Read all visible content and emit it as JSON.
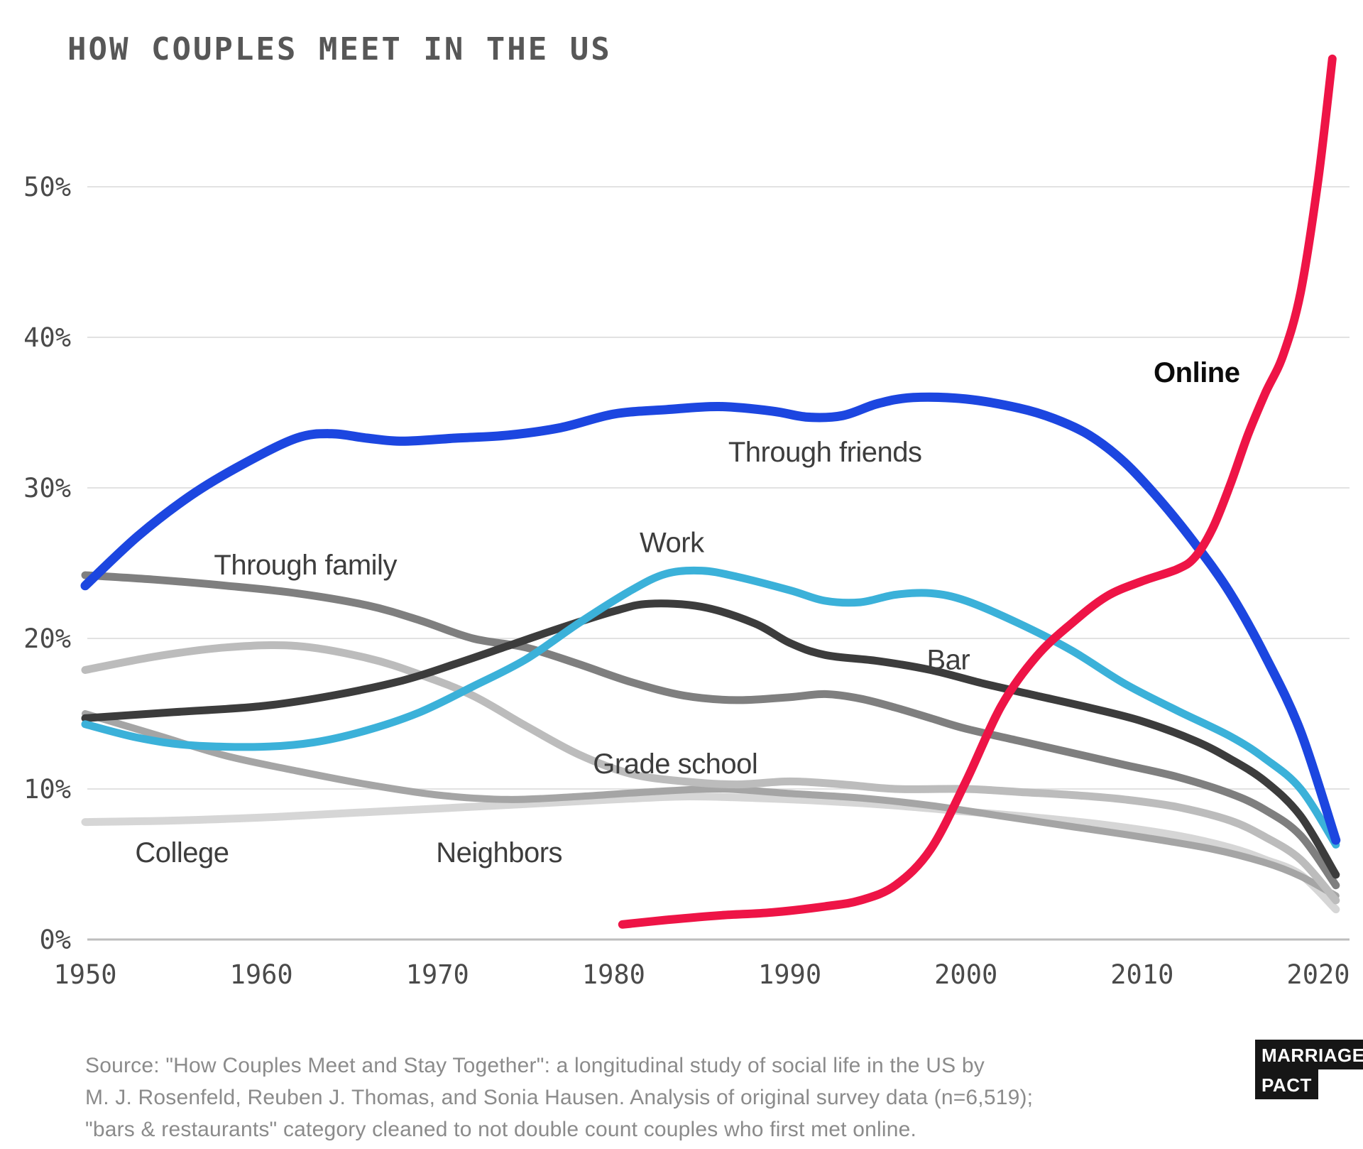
{
  "page": {
    "title": "HOW COUPLES MEET IN THE US"
  },
  "chart_data": {
    "type": "line",
    "title": "HOW COUPLES MEET IN THE US",
    "xlabel": "",
    "ylabel": "",
    "grid": "horizontal",
    "legend_position": "inline-labels",
    "x_axis": {
      "min": 1950,
      "max": 2021,
      "ticks": [
        1950,
        1960,
        1970,
        1980,
        1990,
        2000,
        2010,
        2020
      ]
    },
    "y_axis": {
      "min": 0,
      "max": 59,
      "ticks": [
        {
          "value": 0,
          "label": "0%"
        },
        {
          "value": 10,
          "label": "10%"
        },
        {
          "value": 20,
          "label": "20%"
        },
        {
          "value": 30,
          "label": "30%"
        },
        {
          "value": 40,
          "label": "40%"
        },
        {
          "value": 50,
          "label": "50%"
        }
      ]
    },
    "series": [
      {
        "id": "college",
        "name": "College",
        "color": "#d6d6d6",
        "width": 11,
        "points": [
          [
            1950,
            7.8
          ],
          [
            1955,
            7.9
          ],
          [
            1960,
            8.1
          ],
          [
            1965,
            8.4
          ],
          [
            1970,
            8.7
          ],
          [
            1975,
            9.0
          ],
          [
            1980,
            9.3
          ],
          [
            1984,
            9.5
          ],
          [
            1988,
            9.4
          ],
          [
            1992,
            9.2
          ],
          [
            1996,
            8.9
          ],
          [
            2000,
            8.5
          ],
          [
            2004,
            8.1
          ],
          [
            2008,
            7.6
          ],
          [
            2012,
            6.9
          ],
          [
            2015,
            6.1
          ],
          [
            2017,
            5.3
          ],
          [
            2019,
            4.3
          ],
          [
            2021,
            2.0
          ]
        ]
      },
      {
        "id": "neighbors",
        "name": "Neighbors",
        "color": "#a5a5a5",
        "width": 10,
        "points": [
          [
            1950,
            15.0
          ],
          [
            1954,
            13.6
          ],
          [
            1958,
            12.2
          ],
          [
            1962,
            11.2
          ],
          [
            1966,
            10.3
          ],
          [
            1970,
            9.6
          ],
          [
            1974,
            9.3
          ],
          [
            1978,
            9.5
          ],
          [
            1982,
            9.8
          ],
          [
            1986,
            10.0
          ],
          [
            1990,
            9.7
          ],
          [
            1994,
            9.4
          ],
          [
            1998,
            8.9
          ],
          [
            2002,
            8.2
          ],
          [
            2006,
            7.5
          ],
          [
            2010,
            6.8
          ],
          [
            2014,
            6.0
          ],
          [
            2017,
            5.1
          ],
          [
            2019,
            4.2
          ],
          [
            2021,
            2.9
          ]
        ]
      },
      {
        "id": "grade-school",
        "name": "Grade school",
        "color": "#bcbcbc",
        "width": 11,
        "points": [
          [
            1950,
            17.9
          ],
          [
            1954,
            18.8
          ],
          [
            1958,
            19.4
          ],
          [
            1962,
            19.5
          ],
          [
            1966,
            18.7
          ],
          [
            1969,
            17.6
          ],
          [
            1972,
            16.2
          ],
          [
            1975,
            14.2
          ],
          [
            1978,
            12.3
          ],
          [
            1981,
            11.0
          ],
          [
            1984,
            10.5
          ],
          [
            1987,
            10.3
          ],
          [
            1990,
            10.5
          ],
          [
            1993,
            10.3
          ],
          [
            1996,
            10.0
          ],
          [
            2000,
            10.0
          ],
          [
            2003,
            9.8
          ],
          [
            2006,
            9.6
          ],
          [
            2009,
            9.3
          ],
          [
            2012,
            8.8
          ],
          [
            2015,
            7.9
          ],
          [
            2017,
            6.8
          ],
          [
            2019,
            5.3
          ],
          [
            2021,
            2.6
          ]
        ]
      },
      {
        "id": "through-family",
        "name": "Through family",
        "color": "#7f7f7f",
        "width": 11,
        "points": [
          [
            1950,
            24.2
          ],
          [
            1954,
            23.9
          ],
          [
            1958,
            23.5
          ],
          [
            1962,
            23.0
          ],
          [
            1966,
            22.2
          ],
          [
            1969,
            21.2
          ],
          [
            1972,
            20.0
          ],
          [
            1975,
            19.4
          ],
          [
            1978,
            18.3
          ],
          [
            1981,
            17.1
          ],
          [
            1984,
            16.2
          ],
          [
            1987,
            15.9
          ],
          [
            1990,
            16.1
          ],
          [
            1992,
            16.3
          ],
          [
            1994,
            16.0
          ],
          [
            1996,
            15.4
          ],
          [
            1998,
            14.7
          ],
          [
            2000,
            14.0
          ],
          [
            2003,
            13.2
          ],
          [
            2006,
            12.4
          ],
          [
            2009,
            11.6
          ],
          [
            2012,
            10.8
          ],
          [
            2015,
            9.7
          ],
          [
            2017,
            8.6
          ],
          [
            2019,
            6.9
          ],
          [
            2021,
            3.6
          ]
        ]
      },
      {
        "id": "bar",
        "name": "Bar",
        "color": "#3c3c3c",
        "width": 11,
        "points": [
          [
            1950,
            14.7
          ],
          [
            1955,
            15.1
          ],
          [
            1960,
            15.5
          ],
          [
            1964,
            16.2
          ],
          [
            1968,
            17.2
          ],
          [
            1971,
            18.3
          ],
          [
            1974,
            19.5
          ],
          [
            1977,
            20.7
          ],
          [
            1980,
            21.8
          ],
          [
            1982,
            22.3
          ],
          [
            1985,
            22.1
          ],
          [
            1988,
            21.0
          ],
          [
            1990,
            19.7
          ],
          [
            1992,
            18.9
          ],
          [
            1995,
            18.5
          ],
          [
            1998,
            17.9
          ],
          [
            2001,
            17.0
          ],
          [
            2004,
            16.2
          ],
          [
            2007,
            15.4
          ],
          [
            2010,
            14.5
          ],
          [
            2013,
            13.2
          ],
          [
            2015,
            12.0
          ],
          [
            2017,
            10.5
          ],
          [
            2019,
            8.2
          ],
          [
            2021,
            4.3
          ]
        ]
      },
      {
        "id": "work",
        "name": "Work",
        "color": "#3bb1d9",
        "width": 11,
        "points": [
          [
            1950,
            14.3
          ],
          [
            1953,
            13.4
          ],
          [
            1956,
            12.9
          ],
          [
            1960,
            12.8
          ],
          [
            1963,
            13.1
          ],
          [
            1966,
            13.9
          ],
          [
            1969,
            15.1
          ],
          [
            1972,
            16.8
          ],
          [
            1975,
            18.6
          ],
          [
            1978,
            21.0
          ],
          [
            1981,
            23.2
          ],
          [
            1983,
            24.3
          ],
          [
            1985,
            24.5
          ],
          [
            1987,
            24.1
          ],
          [
            1990,
            23.2
          ],
          [
            1992,
            22.5
          ],
          [
            1994,
            22.4
          ],
          [
            1996,
            22.9
          ],
          [
            1998,
            23.0
          ],
          [
            2000,
            22.5
          ],
          [
            2003,
            21.0
          ],
          [
            2006,
            19.2
          ],
          [
            2009,
            17.0
          ],
          [
            2012,
            15.2
          ],
          [
            2015,
            13.5
          ],
          [
            2017,
            12.0
          ],
          [
            2019,
            10.0
          ],
          [
            2021,
            6.3
          ]
        ]
      },
      {
        "id": "through-friends",
        "name": "Through friends",
        "color": "#1c46e0",
        "width": 13,
        "points": [
          [
            1950,
            23.5
          ],
          [
            1953,
            26.8
          ],
          [
            1956,
            29.5
          ],
          [
            1959,
            31.6
          ],
          [
            1962,
            33.3
          ],
          [
            1964,
            33.6
          ],
          [
            1966,
            33.3
          ],
          [
            1968,
            33.1
          ],
          [
            1971,
            33.3
          ],
          [
            1974,
            33.5
          ],
          [
            1977,
            34.0
          ],
          [
            1980,
            34.9
          ],
          [
            1983,
            35.2
          ],
          [
            1986,
            35.4
          ],
          [
            1989,
            35.1
          ],
          [
            1991,
            34.7
          ],
          [
            1993,
            34.8
          ],
          [
            1995,
            35.6
          ],
          [
            1997,
            36.0
          ],
          [
            2000,
            35.9
          ],
          [
            2003,
            35.3
          ],
          [
            2005,
            34.6
          ],
          [
            2007,
            33.5
          ],
          [
            2009,
            31.7
          ],
          [
            2011,
            29.2
          ],
          [
            2013,
            26.3
          ],
          [
            2015,
            23.0
          ],
          [
            2017,
            18.8
          ],
          [
            2019,
            13.8
          ],
          [
            2021,
            6.6
          ]
        ]
      },
      {
        "id": "online",
        "name": "Online",
        "color": "#ee1446",
        "width": 12,
        "points": [
          [
            1980.5,
            1.0
          ],
          [
            1983,
            1.3
          ],
          [
            1986,
            1.6
          ],
          [
            1989,
            1.8
          ],
          [
            1992,
            2.2
          ],
          [
            1994,
            2.6
          ],
          [
            1996,
            3.6
          ],
          [
            1998,
            6.0
          ],
          [
            2000,
            10.5
          ],
          [
            2002,
            15.5
          ],
          [
            2004,
            18.8
          ],
          [
            2006,
            21.0
          ],
          [
            2008,
            22.8
          ],
          [
            2010,
            23.8
          ],
          [
            2012,
            24.6
          ],
          [
            2013,
            25.4
          ],
          [
            2014,
            27.3
          ],
          [
            2015,
            30.2
          ],
          [
            2016,
            33.5
          ],
          [
            2017,
            36.3
          ],
          [
            2018,
            38.8
          ],
          [
            2019,
            43.0
          ],
          [
            2020,
            50.5
          ],
          [
            2020.8,
            58.5
          ]
        ]
      }
    ],
    "annotations": [
      {
        "id": "through-family",
        "text": "Through family",
        "year": 1962.5,
        "pct": 24.9,
        "style": "gray"
      },
      {
        "id": "work",
        "text": "Work",
        "year": 1983.3,
        "pct": 26.4,
        "style": "gray"
      },
      {
        "id": "through-friends",
        "text": "Through friends",
        "year": 1992.0,
        "pct": 32.4,
        "style": "gray"
      },
      {
        "id": "online",
        "text": "Online",
        "year": 2013.1,
        "pct": 37.7,
        "style": "black"
      },
      {
        "id": "bar",
        "text": "Bar",
        "year": 1999.0,
        "pct": 18.6,
        "style": "gray"
      },
      {
        "id": "grade-school",
        "text": "Grade school",
        "year": 1983.5,
        "pct": 11.7,
        "style": "gray"
      },
      {
        "id": "neighbors",
        "text": "Neighbors",
        "year": 1973.5,
        "pct": 5.8,
        "style": "gray"
      },
      {
        "id": "college",
        "text": "College",
        "year": 1955.5,
        "pct": 5.8,
        "style": "gray"
      }
    ]
  },
  "source": {
    "line1": "Source: \"How Couples Meet and Stay Together\": a longitudinal study of social life in the US by",
    "line2": "M. J. Rosenfeld, Reuben J. Thomas, and Sonia Hausen. Analysis of original survey data (n=6,519);",
    "line3": "\"bars & restaurants\" category cleaned to not double count couples who first met online."
  },
  "logo": {
    "line1": "MARRIAGE",
    "line2": "PACT"
  },
  "colors": {
    "online": "#ee1446",
    "through_friends": "#1c46e0",
    "work": "#3bb1d9",
    "bar": "#3c3c3c",
    "through_family": "#7f7f7f",
    "neighbors": "#a5a5a5",
    "grade_school": "#bcbcbc",
    "college": "#d6d6d6",
    "gridline": "#e2e2e2",
    "axis_line": "#bdbdbd",
    "tick_text": "#4a4a4a",
    "title_text": "#575757",
    "source_text": "#8b8b8b"
  }
}
